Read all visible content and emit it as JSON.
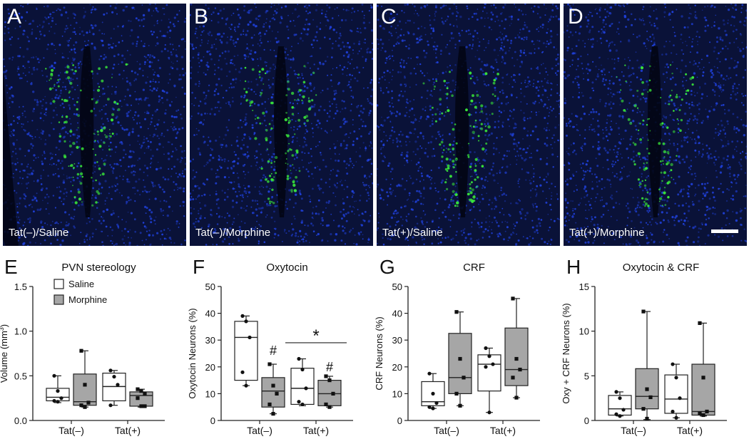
{
  "micrographs": [
    {
      "letter": "A",
      "caption": "Tat(–)/Saline"
    },
    {
      "letter": "B",
      "caption": "Tat(–)/Morphine"
    },
    {
      "letter": "C",
      "caption": "Tat(+)/Saline"
    },
    {
      "letter": "D",
      "caption": "Tat(+)/Morphine"
    }
  ],
  "colors": {
    "nuclei": "#1f3fd6",
    "neurons": "#39e63a",
    "background": "#0a1238",
    "saline": "#ffffff",
    "morphine": "#a6a6a6"
  },
  "chart_data": [
    {
      "type": "box",
      "letter": "E",
      "title": "PVN stereology",
      "ylabel_main": "Volume (mm",
      "ylabel_sup": "3",
      "ylabel_end": ")",
      "ylim": [
        0,
        1.5
      ],
      "yticks": [
        "0.0",
        "0.5",
        "1.0",
        "1.5"
      ],
      "ytick_values": [
        0,
        0.5,
        1,
        1.5
      ],
      "categories": [
        "Tat(–)",
        "Tat(+)"
      ],
      "legend": [
        "Saline",
        "Morphine"
      ],
      "series": [
        {
          "name": "Saline",
          "boxes": [
            {
              "min": 0.2,
              "q1": 0.22,
              "median": 0.26,
              "q3": 0.36,
              "max": 0.5,
              "points": [
                0.5,
                0.33,
                0.25,
                0.22,
                0.21
              ]
            },
            {
              "min": 0.17,
              "q1": 0.22,
              "median": 0.38,
              "q3": 0.53,
              "max": 0.56,
              "points": [
                0.56,
                0.49,
                0.4,
                0.17
              ]
            }
          ]
        },
        {
          "name": "Morphine",
          "boxes": [
            {
              "min": 0.15,
              "q1": 0.17,
              "median": 0.21,
              "q3": 0.52,
              "max": 0.78,
              "points": [
                0.78,
                0.4,
                0.2,
                0.17,
                0.15
              ]
            },
            {
              "min": 0.15,
              "q1": 0.16,
              "median": 0.28,
              "q3": 0.32,
              "max": 0.35,
              "points": [
                0.35,
                0.33,
                0.3,
                0.25,
                0.16,
                0.16
              ]
            }
          ]
        }
      ],
      "annotations": []
    },
    {
      "type": "box",
      "letter": "F",
      "title": "Oxytocin",
      "ylabel_main": "Oxytocin Neurons (%)",
      "ylabel_sup": "",
      "ylabel_end": "",
      "ylim": [
        0,
        50
      ],
      "yticks": [
        "0",
        "10",
        "20",
        "30",
        "40",
        "50"
      ],
      "ytick_values": [
        0,
        10,
        20,
        30,
        40,
        50
      ],
      "categories": [
        "Tat(–)",
        "Tat(+)"
      ],
      "legend": [],
      "series": [
        {
          "name": "Saline",
          "boxes": [
            {
              "min": 13,
              "q1": 15,
              "median": 31,
              "q3": 37,
              "max": 39,
              "points": [
                39,
                37,
                31,
                18,
                13
              ]
            },
            {
              "min": 5.5,
              "q1": 6,
              "median": 12,
              "q3": 19.5,
              "max": 23,
              "points": [
                23,
                19,
                12,
                7,
                6
              ]
            }
          ]
        },
        {
          "name": "Morphine",
          "boxes": [
            {
              "min": 2.5,
              "q1": 5,
              "median": 11,
              "q3": 16,
              "max": 21,
              "points": [
                21,
                13,
                10,
                6,
                2.5
              ]
            },
            {
              "min": 5,
              "q1": 5.5,
              "median": 10,
              "q3": 15,
              "max": 16.5,
              "points": [
                16.5,
                15,
                10,
                6,
                5
              ]
            }
          ]
        }
      ],
      "annotations": [
        {
          "type": "hash",
          "text": "#",
          "series": 1,
          "group": 0,
          "y": 26
        },
        {
          "type": "hash",
          "text": "#",
          "series": 1,
          "group": 1,
          "y": 20
        },
        {
          "type": "star",
          "text": "*",
          "y": 29
        }
      ]
    },
    {
      "type": "box",
      "letter": "G",
      "title": "CRF",
      "ylabel_main": "CRF Neurons (%)",
      "ylabel_sup": "",
      "ylabel_end": "",
      "ylim": [
        0,
        50
      ],
      "yticks": [
        "0",
        "10",
        "20",
        "30",
        "40",
        "50"
      ],
      "ytick_values": [
        0,
        10,
        20,
        30,
        40,
        50
      ],
      "categories": [
        "Tat(–)",
        "Tat(+)"
      ],
      "legend": [],
      "series": [
        {
          "name": "Saline",
          "boxes": [
            {
              "min": 4.5,
              "q1": 5.5,
              "median": 7,
              "q3": 14.5,
              "max": 17.5,
              "points": [
                17.5,
                10,
                6.5,
                5,
                4.5
              ]
            },
            {
              "min": 3,
              "q1": 11,
              "median": 21,
              "q3": 24.5,
              "max": 27,
              "points": [
                27,
                24,
                21,
                20,
                3
              ]
            }
          ]
        },
        {
          "name": "Morphine",
          "boxes": [
            {
              "min": 5.5,
              "q1": 10,
              "median": 16,
              "q3": 32.5,
              "max": 40.5,
              "points": [
                40.5,
                23,
                16,
                10,
                5.5
              ]
            },
            {
              "min": 8.5,
              "q1": 13,
              "median": 19,
              "q3": 34.5,
              "max": 45.5,
              "points": [
                45.5,
                23,
                19,
                16,
                8.5
              ]
            }
          ]
        }
      ],
      "annotations": []
    },
    {
      "type": "box",
      "letter": "H",
      "title": "Oxytocin & CRF",
      "ylabel_main": "Oxy + CRF Neurons (%)",
      "ylabel_sup": "",
      "ylabel_end": "",
      "ylim": [
        0,
        15
      ],
      "yticks": [
        "0",
        "5",
        "10",
        "15"
      ],
      "ytick_values": [
        0,
        5,
        10,
        15
      ],
      "categories": [
        "Tat(–)",
        "Tat(+)"
      ],
      "legend": [],
      "series": [
        {
          "name": "Saline",
          "boxes": [
            {
              "min": 0.5,
              "q1": 0.6,
              "median": 1.3,
              "q3": 2.8,
              "max": 3.2,
              "points": [
                3.2,
                2.5,
                1.2,
                0.7,
                0.5
              ]
            },
            {
              "min": 0.3,
              "q1": 0.8,
              "median": 2.4,
              "q3": 5.1,
              "max": 6.3,
              "points": [
                6.3,
                4.8,
                2.5,
                1,
                0.3
              ]
            }
          ]
        },
        {
          "name": "Morphine",
          "boxes": [
            {
              "min": 0.1,
              "q1": 1.3,
              "median": 2.7,
              "q3": 5.8,
              "max": 12.2,
              "points": [
                12.2,
                3.5,
                2.6,
                1.3,
                0.2
              ]
            },
            {
              "min": 0.5,
              "q1": 0.6,
              "median": 1.0,
              "q3": 6.3,
              "max": 10.9,
              "points": [
                10.9,
                4.8,
                1,
                0.8,
                0.6
              ]
            }
          ]
        }
      ],
      "annotations": []
    }
  ]
}
